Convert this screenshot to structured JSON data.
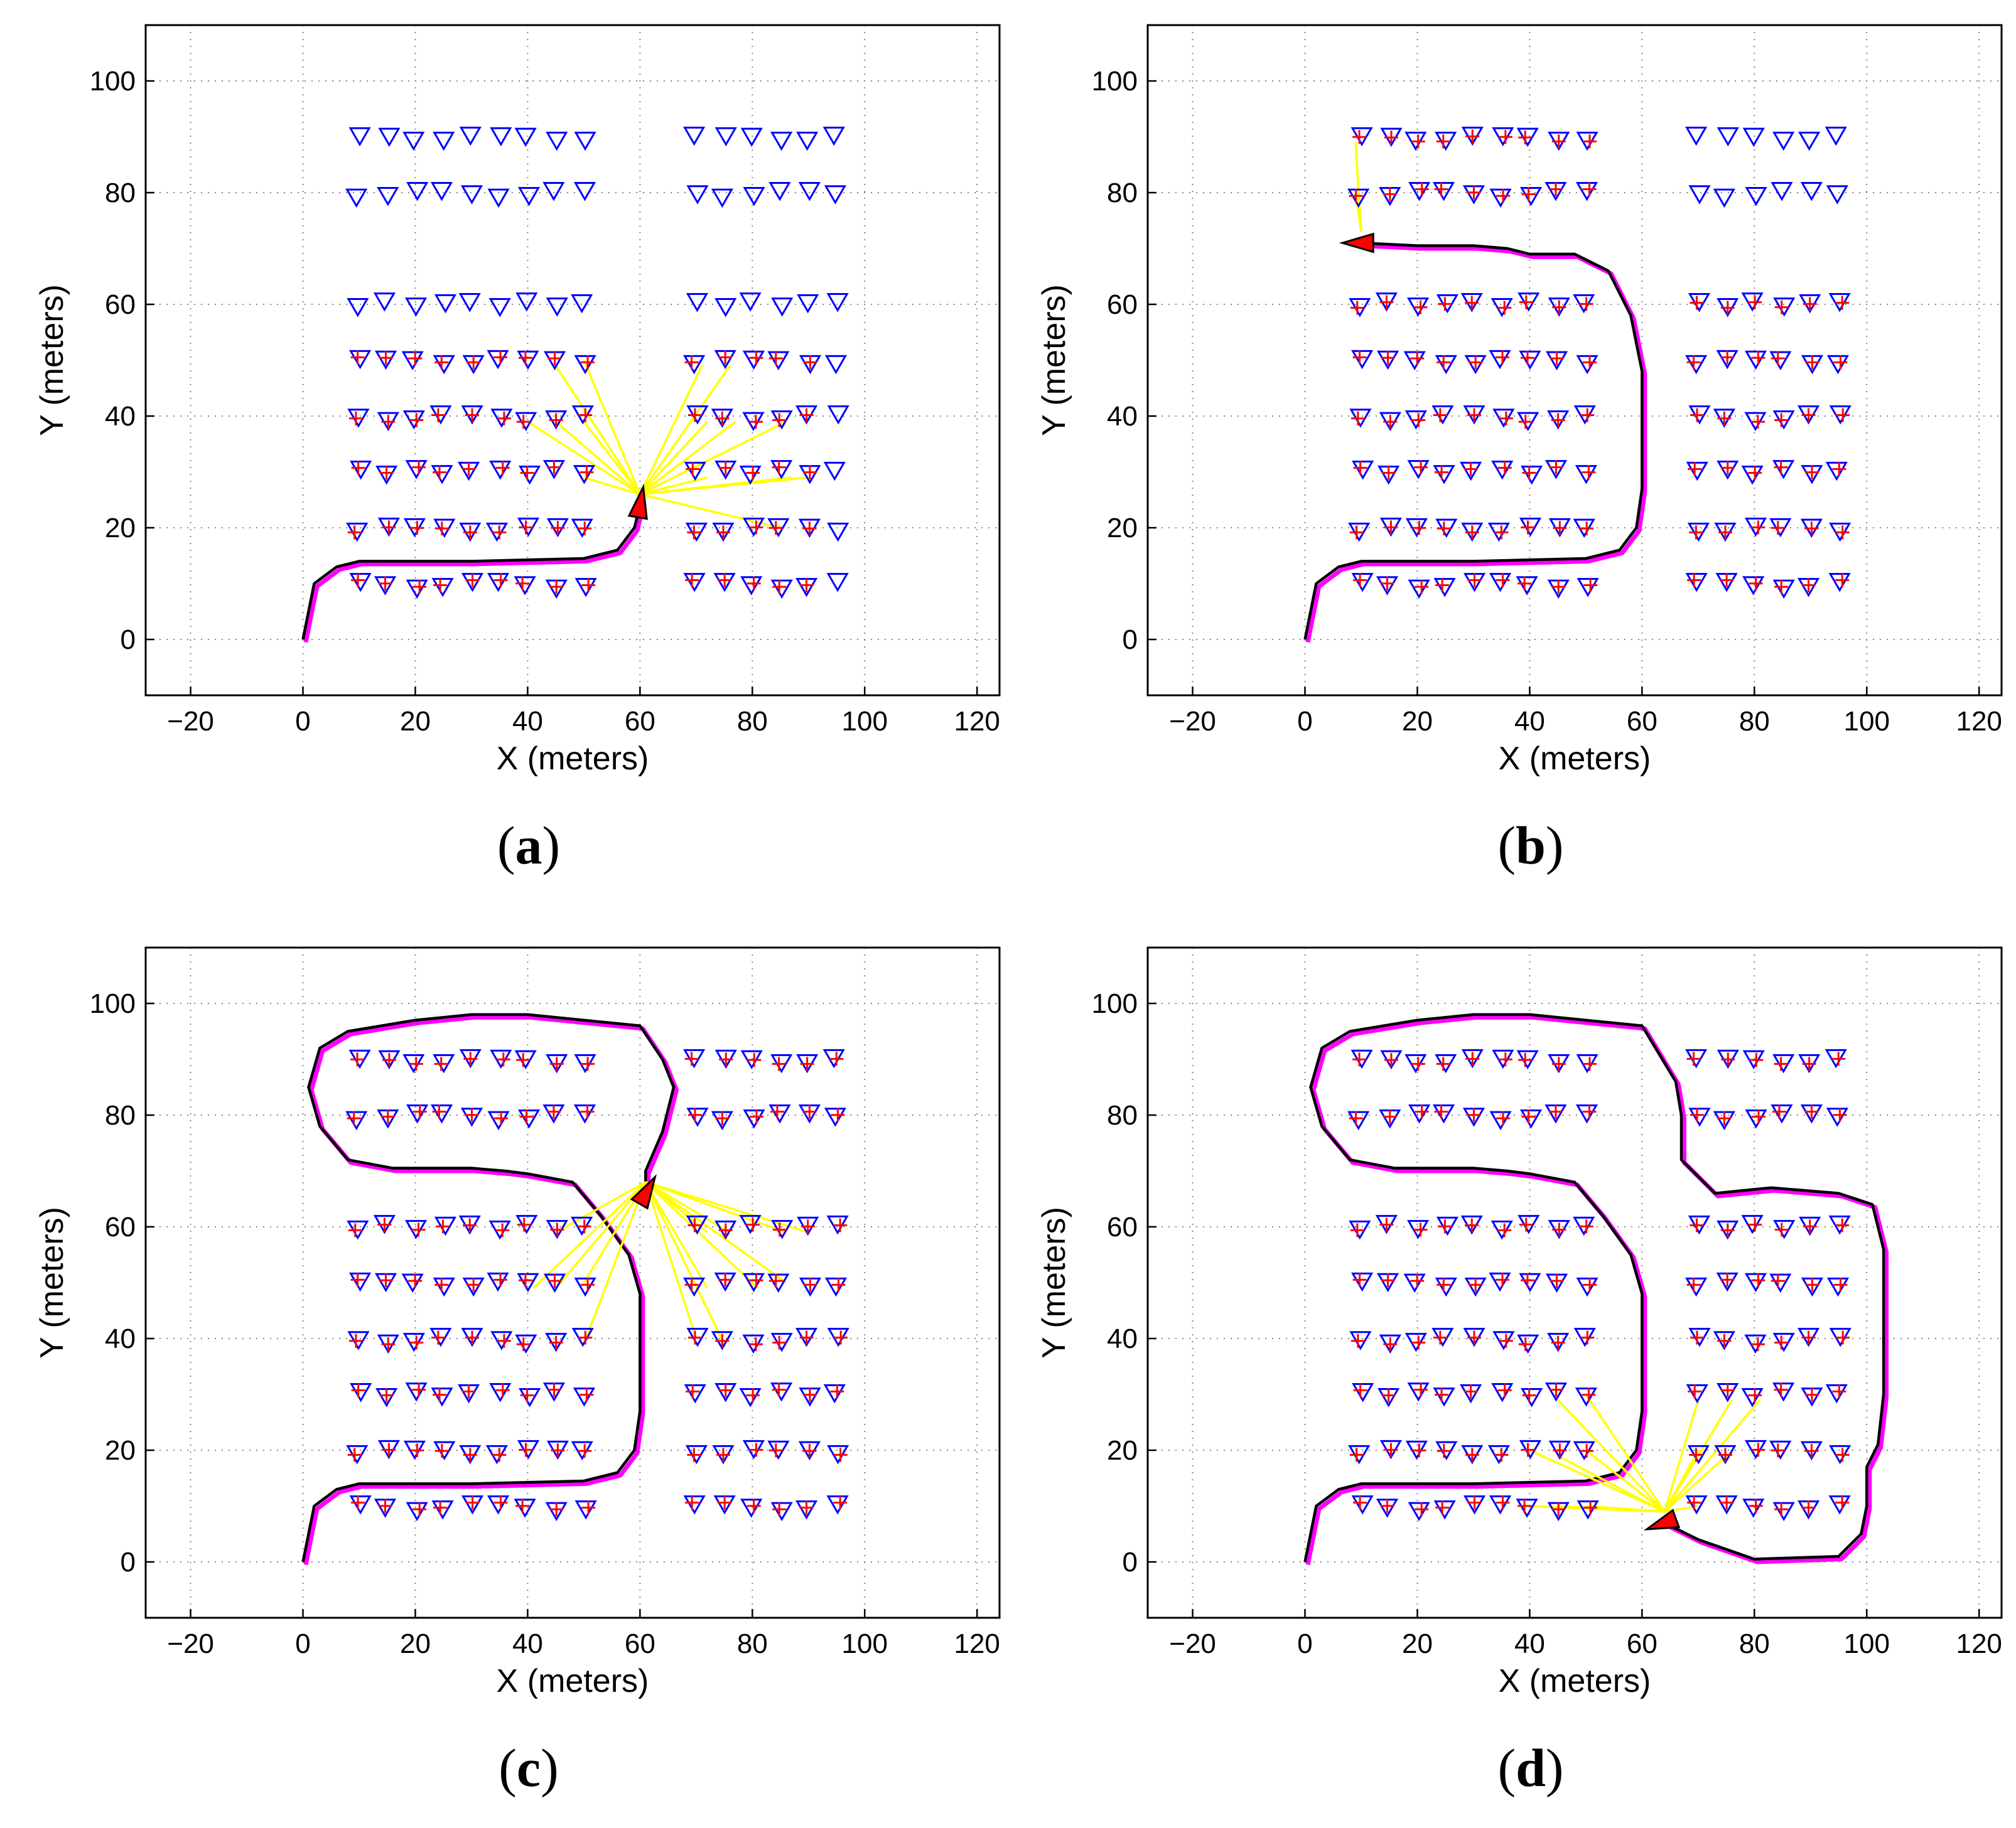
{
  "colors": {
    "landmark": "#0000ff",
    "estimate": "#ff0000",
    "observation": "#ffff00",
    "true_path": "#ff00ff",
    "est_path": "#000000",
    "robot": "#ff0000",
    "grid": "#888888"
  },
  "chart_data": [
    {
      "type": "scatter",
      "panel": "a",
      "caption_letter": "a",
      "xlabel": "X (meters)",
      "ylabel": "Y (meters)",
      "xlim": [
        -28,
        124
      ],
      "ylim": [
        -10,
        110
      ],
      "xticks": [
        -20,
        0,
        20,
        40,
        60,
        80,
        100,
        120
      ],
      "yticks": [
        0,
        20,
        40,
        60,
        80,
        100
      ],
      "grid": true,
      "robot": {
        "x": 60,
        "y": 24,
        "heading": 80
      },
      "path": [
        [
          0,
          0
        ],
        [
          2,
          10
        ],
        [
          6,
          13
        ],
        [
          10,
          14
        ],
        [
          30,
          14
        ],
        [
          50,
          14.5
        ],
        [
          56,
          16
        ],
        [
          59,
          20
        ],
        [
          60,
          24
        ]
      ],
      "observed_rows": [
        10,
        20,
        30,
        40,
        50
      ],
      "observed_cols": [],
      "observations": [
        [
          45,
          49
        ],
        [
          50,
          50
        ],
        [
          40,
          39
        ],
        [
          45,
          39
        ],
        [
          50,
          39
        ],
        [
          50,
          29
        ],
        [
          71,
          49
        ],
        [
          76,
          49
        ],
        [
          72,
          39
        ],
        [
          77,
          39
        ],
        [
          86,
          39
        ],
        [
          72,
          29
        ],
        [
          87,
          29
        ],
        [
          90,
          29
        ],
        [
          85,
          20
        ]
      ]
    },
    {
      "type": "scatter",
      "panel": "b",
      "caption_letter": "b",
      "xlabel": "X (meters)",
      "ylabel": "Y (meters)",
      "xlim": [
        -28,
        124
      ],
      "ylim": [
        -10,
        110
      ],
      "xticks": [
        -20,
        0,
        20,
        40,
        60,
        80,
        100,
        120
      ],
      "yticks": [
        0,
        20,
        40,
        60,
        80,
        100
      ],
      "grid": true,
      "robot": {
        "x": 10,
        "y": 71,
        "heading": 180
      },
      "path": [
        [
          0,
          0
        ],
        [
          2,
          10
        ],
        [
          6,
          13
        ],
        [
          10,
          14
        ],
        [
          30,
          14
        ],
        [
          50,
          14.5
        ],
        [
          56,
          16
        ],
        [
          59,
          20
        ],
        [
          60,
          27
        ],
        [
          60,
          38
        ],
        [
          60,
          48
        ],
        [
          58,
          58
        ],
        [
          54,
          66
        ],
        [
          48,
          69
        ],
        [
          40,
          69
        ],
        [
          36,
          70
        ],
        [
          30,
          70.5
        ],
        [
          20,
          70.5
        ],
        [
          10,
          71
        ]
      ],
      "observed_rows": [
        10,
        20,
        30,
        40,
        50,
        60,
        80,
        90
      ],
      "observed_cols": [],
      "observations": [
        [
          9,
          80
        ],
        [
          9,
          89
        ]
      ]
    },
    {
      "type": "scatter",
      "panel": "c",
      "caption_letter": "c",
      "xlabel": "X (meters)",
      "ylabel": "Y (meters)",
      "xlim": [
        -28,
        124
      ],
      "ylim": [
        -10,
        110
      ],
      "xticks": [
        -20,
        0,
        20,
        40,
        60,
        80,
        100,
        120
      ],
      "yticks": [
        0,
        20,
        40,
        60,
        80,
        100
      ],
      "grid": true,
      "robot": {
        "x": 61,
        "y": 66,
        "heading": 60
      },
      "path": [
        [
          0,
          0
        ],
        [
          2,
          10
        ],
        [
          6,
          13
        ],
        [
          10,
          14
        ],
        [
          30,
          14
        ],
        [
          50,
          14.5
        ],
        [
          56,
          16
        ],
        [
          59,
          20
        ],
        [
          60,
          27
        ],
        [
          60,
          38
        ],
        [
          60,
          48
        ],
        [
          58,
          55
        ],
        [
          53,
          62
        ],
        [
          48,
          68
        ],
        [
          40,
          69.5
        ],
        [
          36,
          70
        ],
        [
          30,
          70.5
        ],
        [
          16,
          70.5
        ],
        [
          8,
          72
        ],
        [
          3,
          78
        ],
        [
          1,
          85
        ],
        [
          3,
          92
        ],
        [
          8,
          95
        ],
        [
          20,
          97
        ],
        [
          30,
          98
        ],
        [
          40,
          98
        ],
        [
          50,
          97
        ],
        [
          60,
          96
        ],
        [
          64,
          90
        ],
        [
          66,
          85
        ],
        [
          64,
          77
        ],
        [
          61,
          70
        ],
        [
          61,
          66
        ]
      ],
      "observed_rows": [
        10,
        20,
        30,
        40,
        50,
        60,
        80,
        90
      ],
      "observed_cols": [],
      "observations": [
        [
          45,
          59
        ],
        [
          41,
          49
        ],
        [
          45,
          49
        ],
        [
          50,
          50
        ],
        [
          50,
          39
        ],
        [
          72,
          59
        ],
        [
          76,
          59
        ],
        [
          86,
          59
        ],
        [
          90,
          59
        ],
        [
          72,
          49
        ],
        [
          81,
          49
        ],
        [
          86,
          50
        ],
        [
          70,
          40
        ],
        [
          75,
          39
        ]
      ]
    },
    {
      "type": "scatter",
      "panel": "d",
      "caption_letter": "d",
      "xlabel": "X (meters)",
      "ylabel": "Y (meters)",
      "xlim": [
        -28,
        124
      ],
      "ylim": [
        -10,
        110
      ],
      "xticks": [
        -20,
        0,
        20,
        40,
        60,
        80,
        100,
        120
      ],
      "yticks": [
        0,
        20,
        40,
        60,
        80,
        100
      ],
      "grid": true,
      "robot": {
        "x": 64,
        "y": 7,
        "heading": 200
      },
      "path": [
        [
          0,
          0
        ],
        [
          2,
          10
        ],
        [
          6,
          13
        ],
        [
          10,
          14
        ],
        [
          30,
          14
        ],
        [
          50,
          14.5
        ],
        [
          56,
          16
        ],
        [
          59,
          20
        ],
        [
          60,
          27
        ],
        [
          60,
          38
        ],
        [
          60,
          48
        ],
        [
          58,
          55
        ],
        [
          53,
          62
        ],
        [
          48,
          68
        ],
        [
          40,
          69.5
        ],
        [
          36,
          70
        ],
        [
          30,
          70.5
        ],
        [
          16,
          70.5
        ],
        [
          8,
          72
        ],
        [
          3,
          78
        ],
        [
          1,
          85
        ],
        [
          3,
          92
        ],
        [
          8,
          95
        ],
        [
          20,
          97
        ],
        [
          30,
          98
        ],
        [
          40,
          98
        ],
        [
          50,
          97
        ],
        [
          60,
          96
        ],
        [
          66,
          86
        ],
        [
          67,
          80
        ],
        [
          67,
          72
        ],
        [
          73,
          66
        ],
        [
          83,
          67
        ],
        [
          95,
          66
        ],
        [
          101,
          64
        ],
        [
          103,
          56
        ],
        [
          103,
          30
        ],
        [
          102,
          21
        ],
        [
          100,
          17
        ],
        [
          100,
          10
        ],
        [
          99,
          5
        ],
        [
          95,
          1
        ],
        [
          80,
          0.5
        ],
        [
          70,
          4
        ],
        [
          64,
          7
        ]
      ],
      "observed_rows": [
        10,
        20,
        30,
        40,
        50,
        60,
        80,
        90
      ],
      "observed_cols": [],
      "observations": [
        [
          45,
          29
        ],
        [
          50,
          30
        ],
        [
          40,
          20
        ],
        [
          45,
          19
        ],
        [
          50,
          20
        ],
        [
          40,
          10
        ],
        [
          45,
          10
        ],
        [
          50,
          10
        ],
        [
          70,
          29
        ],
        [
          76,
          29
        ],
        [
          81,
          29
        ],
        [
          70,
          20
        ],
        [
          75,
          19
        ],
        [
          70,
          10
        ]
      ]
    }
  ],
  "landmark_cols": [
    10,
    15,
    20,
    25,
    30,
    35,
    40,
    45,
    50,
    70,
    75,
    80,
    85,
    90,
    95
  ],
  "landmark_rows": [
    10,
    20,
    30,
    40,
    50,
    60,
    80,
    90
  ],
  "landmark_jitter": [
    0.4,
    -0.6,
    0.5,
    -0.2,
    0.3,
    -0.4,
    -0.8,
    0.2,
    0.6,
    -0.5,
    0.1,
    -0.3,
    0.4,
    -0.6,
    0.3
  ]
}
